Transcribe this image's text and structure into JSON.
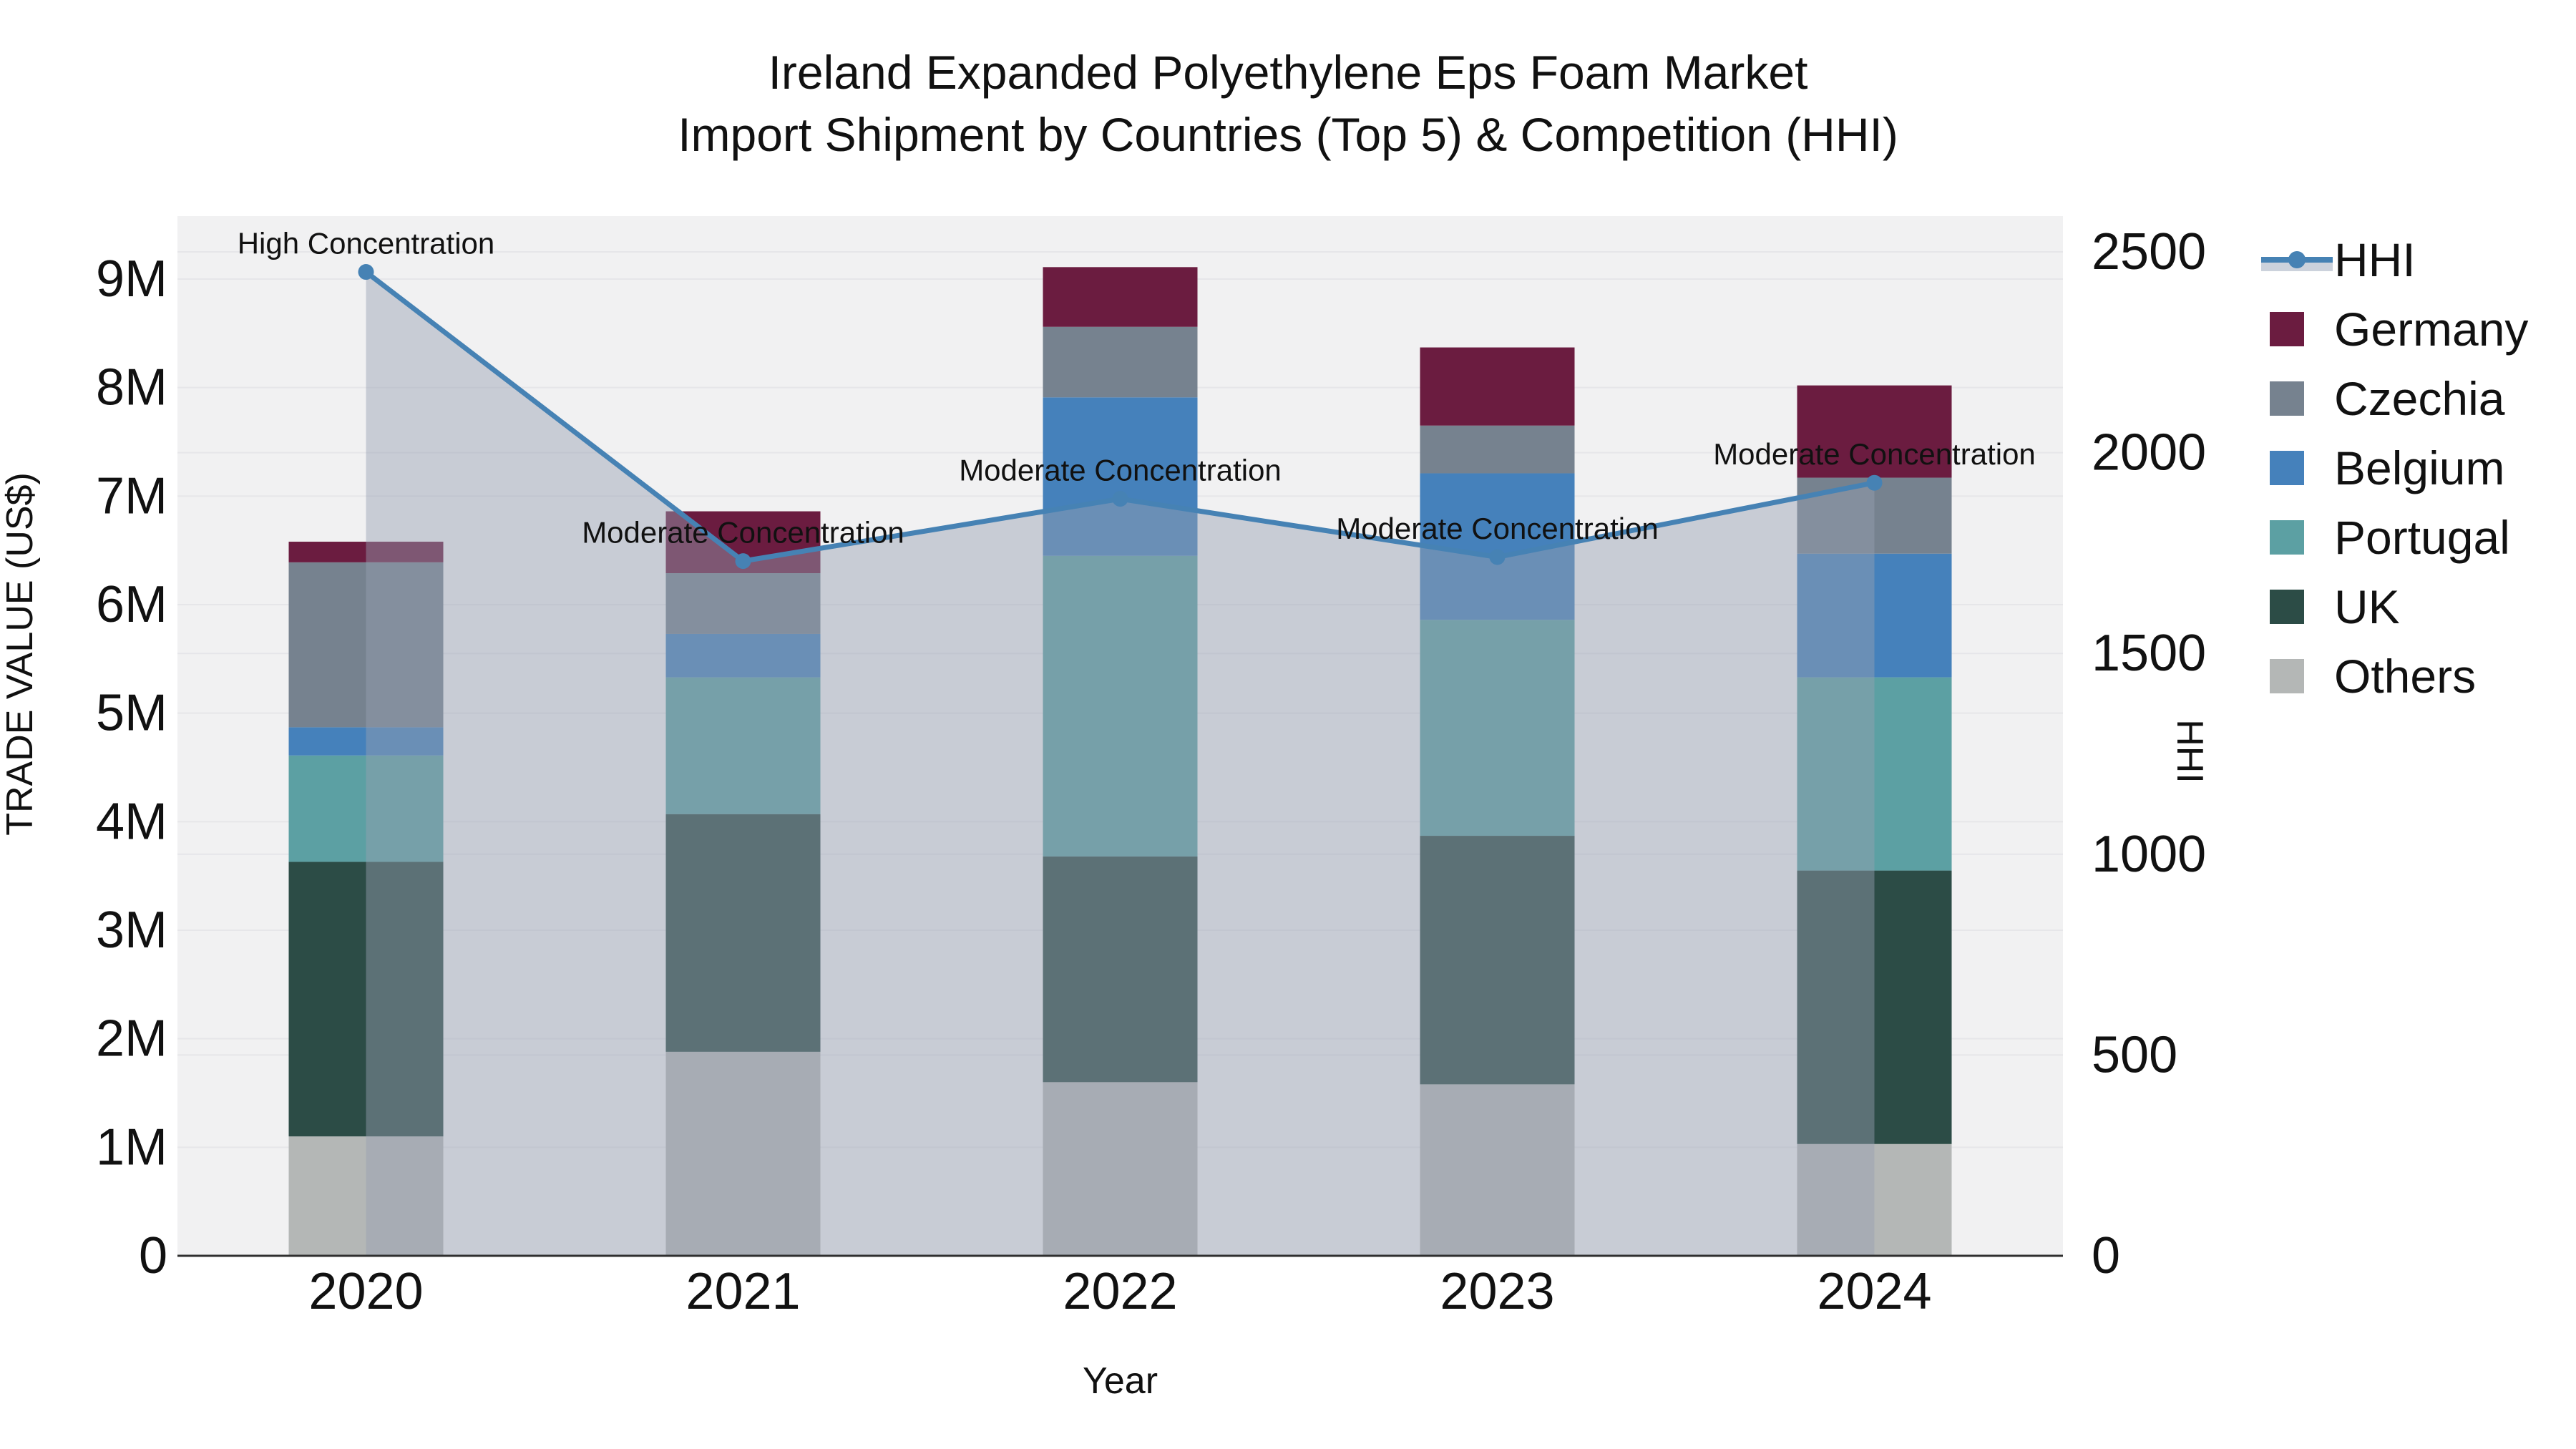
{
  "chart_data": {
    "type": "bar+line",
    "title_line1": "Ireland Expanded Polyethylene Eps Foam Market",
    "title_line2": "Import Shipment by Countries (Top 5) & Competition (HHI)",
    "categories": [
      "2020",
      "2021",
      "2022",
      "2023",
      "2024"
    ],
    "values_unit": "Million US$",
    "stack_order_bottom_to_top": [
      "Others",
      "UK",
      "Portugal",
      "Belgium",
      "Czechia",
      "Germany"
    ],
    "series": [
      {
        "name": "Germany",
        "color": "#6b1c40",
        "values": [
          0.19,
          0.57,
          0.55,
          0.72,
          0.85
        ]
      },
      {
        "name": "Czechia",
        "color": "#76828f",
        "values": [
          1.52,
          0.56,
          0.65,
          0.44,
          0.7
        ]
      },
      {
        "name": "Belgium",
        "color": "#4581bb",
        "values": [
          0.26,
          0.4,
          1.46,
          1.35,
          1.14
        ]
      },
      {
        "name": "Portugal",
        "color": "#5ca0a3",
        "values": [
          0.98,
          1.26,
          2.77,
          1.99,
          1.78
        ]
      },
      {
        "name": "UK",
        "color": "#2c4c46",
        "values": [
          2.53,
          2.19,
          2.08,
          2.29,
          2.52
        ]
      },
      {
        "name": "Others",
        "color": "#b4b7b6",
        "values": [
          1.1,
          1.88,
          1.6,
          1.58,
          1.03
        ]
      }
    ],
    "bar_totals": [
      6.58,
      6.86,
      9.11,
      8.37,
      8.02
    ],
    "hhi": {
      "name": "HHI",
      "color": "#4682b4",
      "fill_color": "rgba(150,160,178,0.45)",
      "values": [
        2450,
        1730,
        1885,
        1740,
        1925
      ]
    },
    "annotations": [
      "High Concentration",
      "Moderate Concentration",
      "Moderate Concentration",
      "Moderate Concentration",
      "Moderate Concentration"
    ],
    "xaxis": {
      "title": "Year",
      "tick_labels": [
        "2020",
        "2021",
        "2022",
        "2023",
        "2024"
      ]
    },
    "yaxis": {
      "title": "TRADE VALUE (US$)",
      "tick_values": [
        0,
        1,
        2,
        3,
        4,
        5,
        6,
        7,
        8,
        9
      ],
      "tick_labels": [
        "0",
        "1M",
        "2M",
        "3M",
        "4M",
        "5M",
        "6M",
        "7M",
        "8M",
        "9M"
      ],
      "range": [
        0,
        9.58
      ]
    },
    "y2axis": {
      "title": "HHI",
      "tick_values": [
        0,
        500,
        1000,
        1500,
        2000,
        2500
      ],
      "tick_labels": [
        "0",
        "500",
        "1000",
        "1500",
        "2000",
        "2500"
      ],
      "range": [
        0,
        2587
      ]
    },
    "legend": [
      {
        "label": "HHI",
        "type": "line",
        "color": "#4682b4"
      },
      {
        "label": "Germany",
        "type": "box",
        "color": "#6b1c40"
      },
      {
        "label": "Czechia",
        "type": "box",
        "color": "#76828f"
      },
      {
        "label": "Belgium",
        "type": "box",
        "color": "#4581bb"
      },
      {
        "label": "Portugal",
        "type": "box",
        "color": "#5ca0a3"
      },
      {
        "label": "UK",
        "type": "box",
        "color": "#2c4c46"
      },
      {
        "label": "Others",
        "type": "box",
        "color": "#b4b7b6"
      }
    ],
    "plot_style": {
      "background": "#f1f1f2",
      "gridline_color": "#e6e6e9",
      "axis_line_color": "#2f2f2f",
      "text_color": "#111111",
      "area_fill_over_background": "#ccd2dc"
    }
  }
}
